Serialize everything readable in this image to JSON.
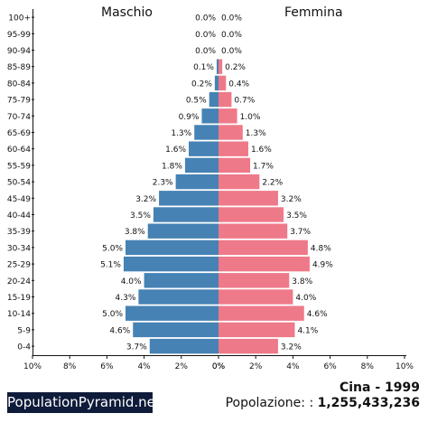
{
  "header": {
    "male_label": "Maschio",
    "female_label": "Femmina"
  },
  "footer": {
    "brand": "PopulationPyramid.net",
    "country_year": "Cina - 1999",
    "population_label": "Popolazione: :",
    "population_value": "1,255,433,236"
  },
  "colors": {
    "male": "#4682b4",
    "female": "#ee7989"
  },
  "chart_data": {
    "type": "bar",
    "orientation": "horizontal-pyramid",
    "categories": [
      "100+",
      "95-99",
      "90-94",
      "85-89",
      "80-84",
      "75-79",
      "70-74",
      "65-69",
      "60-64",
      "55-59",
      "50-54",
      "45-49",
      "40-44",
      "35-39",
      "30-34",
      "25-29",
      "20-24",
      "15-19",
      "10-14",
      "5-9",
      "0-4"
    ],
    "series": [
      {
        "name": "Maschio",
        "values": [
          0.0,
          0.0,
          0.0,
          0.1,
          0.2,
          0.5,
          0.9,
          1.3,
          1.6,
          1.8,
          2.3,
          3.2,
          3.5,
          3.8,
          5.0,
          5.1,
          4.0,
          4.3,
          5.0,
          4.6,
          3.7
        ],
        "labels": [
          "0.0%",
          "0.0%",
          "0.0%",
          "0.1%",
          "0.2%",
          "0.5%",
          "0.9%",
          "1.3%",
          "1.6%",
          "1.8%",
          "2.3%",
          "3.2%",
          "3.5%",
          "3.8%",
          "5.0%",
          "5.1%",
          "4.0%",
          "4.3%",
          "5.0%",
          "4.6%",
          "3.7%"
        ]
      },
      {
        "name": "Femmina",
        "values": [
          0.0,
          0.0,
          0.0,
          0.2,
          0.4,
          0.7,
          1.0,
          1.3,
          1.6,
          1.7,
          2.2,
          3.2,
          3.5,
          3.7,
          4.8,
          4.9,
          3.8,
          4.0,
          4.6,
          4.1,
          3.2
        ],
        "labels": [
          "0.0%",
          "0.0%",
          "0.0%",
          "0.2%",
          "0.4%",
          "0.7%",
          "1.0%",
          "1.3%",
          "1.6%",
          "1.7%",
          "2.2%",
          "3.2%",
          "3.5%",
          "3.7%",
          "4.8%",
          "4.9%",
          "3.8%",
          "4.0%",
          "4.6%",
          "4.1%",
          "3.2%"
        ]
      }
    ],
    "x_ticks_left": [
      "10%",
      "8%",
      "6%",
      "4%",
      "2%",
      "0%"
    ],
    "x_ticks_right": [
      "0%",
      "2%",
      "4%",
      "6%",
      "8%",
      "10%"
    ],
    "xlim": [
      0,
      10
    ]
  }
}
